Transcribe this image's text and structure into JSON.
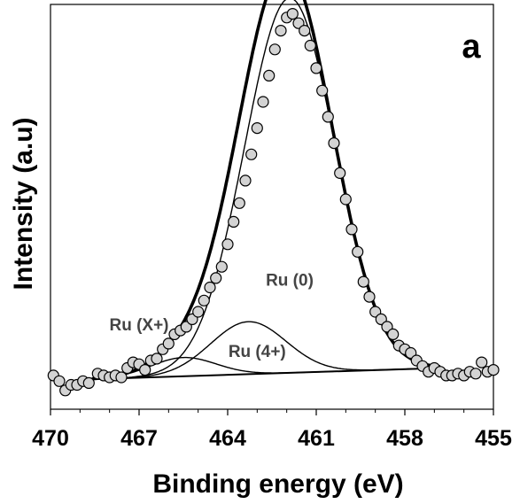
{
  "chart_data": {
    "type": "scatter",
    "panel_label": "a",
    "xlabel": "Binding energy (eV)",
    "ylabel": "Intensity (a.u)",
    "xlim": [
      470,
      455
    ],
    "x_reversed": true,
    "ylim": [
      -0.08,
      1.0
    ],
    "ticks": [
      470,
      467,
      464,
      461,
      458,
      455
    ],
    "tick_labels": [
      "470",
      "467",
      "464",
      "461",
      "458",
      "455"
    ],
    "y_tick_labels": false,
    "annotations": [
      {
        "text": "Ru (0)",
        "x": 461.9,
        "y": 0.25
      },
      {
        "text": "Ru (X+)",
        "x": 467.0,
        "y": 0.13
      },
      {
        "text": "Ru (4+)",
        "x": 463.0,
        "y": 0.06
      }
    ],
    "background": {
      "x_start": 468.6,
      "y_start": 0.0,
      "x_end": 456.8,
      "y_end": 0.03
    },
    "components": [
      {
        "label": "Ru (0)",
        "center": 461.9,
        "height": 1.0,
        "fwhm": 3.6,
        "color": "#000000"
      },
      {
        "label": "Ru (4+)",
        "center": 463.3,
        "height": 0.14,
        "fwhm": 3.0,
        "color": "#000000"
      },
      {
        "label": "Ru (X+)",
        "center": 465.5,
        "height": 0.05,
        "fwhm": 2.6,
        "color": "#000000"
      }
    ],
    "series": [
      {
        "name": "",
        "marker": "circle",
        "marker_color": "#d3d3d3",
        "points": [
          [
            469.9,
            0.01
          ],
          [
            469.7,
            -0.005
          ],
          [
            469.5,
            -0.03
          ],
          [
            469.3,
            -0.015
          ],
          [
            469.1,
            -0.015
          ],
          [
            468.9,
            -0.005
          ],
          [
            468.7,
            -0.01
          ],
          [
            468.4,
            0.015
          ],
          [
            468.2,
            0.01
          ],
          [
            468.0,
            0.005
          ],
          [
            467.8,
            0.01
          ],
          [
            467.6,
            0.005
          ],
          [
            467.4,
            0.03
          ],
          [
            467.2,
            0.045
          ],
          [
            467.0,
            0.04
          ],
          [
            466.8,
            0.025
          ],
          [
            466.6,
            0.05
          ],
          [
            466.4,
            0.055
          ],
          [
            466.2,
            0.08
          ],
          [
            466.0,
            0.095
          ],
          [
            465.8,
            0.12
          ],
          [
            465.6,
            0.13
          ],
          [
            465.4,
            0.14
          ],
          [
            465.2,
            0.16
          ],
          [
            465.0,
            0.18
          ],
          [
            464.8,
            0.21
          ],
          [
            464.6,
            0.245
          ],
          [
            464.4,
            0.27
          ],
          [
            464.2,
            0.3
          ],
          [
            464.0,
            0.36
          ],
          [
            463.8,
            0.42
          ],
          [
            463.6,
            0.47
          ],
          [
            463.4,
            0.53
          ],
          [
            463.2,
            0.6
          ],
          [
            463.0,
            0.67
          ],
          [
            462.8,
            0.74
          ],
          [
            462.6,
            0.81
          ],
          [
            462.4,
            0.88
          ],
          [
            462.2,
            0.93
          ],
          [
            462.0,
            0.965
          ],
          [
            461.8,
            0.975
          ],
          [
            461.6,
            0.95
          ],
          [
            461.4,
            0.93
          ],
          [
            461.2,
            0.89
          ],
          [
            461.0,
            0.83
          ],
          [
            460.8,
            0.77
          ],
          [
            460.6,
            0.7
          ],
          [
            460.4,
            0.63
          ],
          [
            460.2,
            0.55
          ],
          [
            460.0,
            0.48
          ],
          [
            459.8,
            0.4
          ],
          [
            459.6,
            0.34
          ],
          [
            459.4,
            0.26
          ],
          [
            459.2,
            0.22
          ],
          [
            459.0,
            0.18
          ],
          [
            458.8,
            0.16
          ],
          [
            458.6,
            0.14
          ],
          [
            458.4,
            0.12
          ],
          [
            458.2,
            0.09
          ],
          [
            458.0,
            0.08
          ],
          [
            457.8,
            0.07
          ],
          [
            457.6,
            0.05
          ],
          [
            457.4,
            0.035
          ],
          [
            457.2,
            0.02
          ],
          [
            457.0,
            0.03
          ],
          [
            456.8,
            0.02
          ],
          [
            456.6,
            0.01
          ],
          [
            456.4,
            0.01
          ],
          [
            456.2,
            0.015
          ],
          [
            456.0,
            0.01
          ],
          [
            455.8,
            0.02
          ],
          [
            455.6,
            0.015
          ],
          [
            455.4,
            0.045
          ],
          [
            455.2,
            0.02
          ],
          [
            455.0,
            0.025
          ]
        ]
      }
    ]
  }
}
